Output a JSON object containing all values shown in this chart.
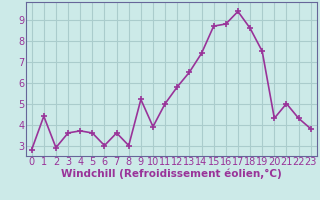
{
  "x": [
    0,
    1,
    2,
    3,
    4,
    5,
    6,
    7,
    8,
    9,
    10,
    11,
    12,
    13,
    14,
    15,
    16,
    17,
    18,
    19,
    20,
    21,
    22,
    23
  ],
  "y": [
    2.8,
    4.4,
    2.9,
    3.6,
    3.7,
    3.6,
    3.0,
    3.6,
    3.0,
    5.2,
    3.9,
    5.0,
    5.8,
    6.5,
    7.4,
    8.7,
    8.8,
    9.4,
    8.6,
    7.5,
    4.3,
    5.0,
    4.3,
    3.8
  ],
  "line_color": "#993399",
  "marker": "+",
  "marker_size": 5,
  "xlabel": "Windchill (Refroidissement éolien,°C)",
  "ylim": [
    2.5,
    9.85
  ],
  "xlim": [
    -0.5,
    23.5
  ],
  "yticks": [
    3,
    4,
    5,
    6,
    7,
    8,
    9
  ],
  "xticks": [
    0,
    1,
    2,
    3,
    4,
    5,
    6,
    7,
    8,
    9,
    10,
    11,
    12,
    13,
    14,
    15,
    16,
    17,
    18,
    19,
    20,
    21,
    22,
    23
  ],
  "bg_color": "#cceae8",
  "grid_color": "#aacccc",
  "axis_label_color": "#993399",
  "tick_color": "#993399",
  "spine_color": "#666699",
  "tick_fontsize": 7,
  "xlabel_fontsize": 7.5,
  "linewidth": 1.2
}
